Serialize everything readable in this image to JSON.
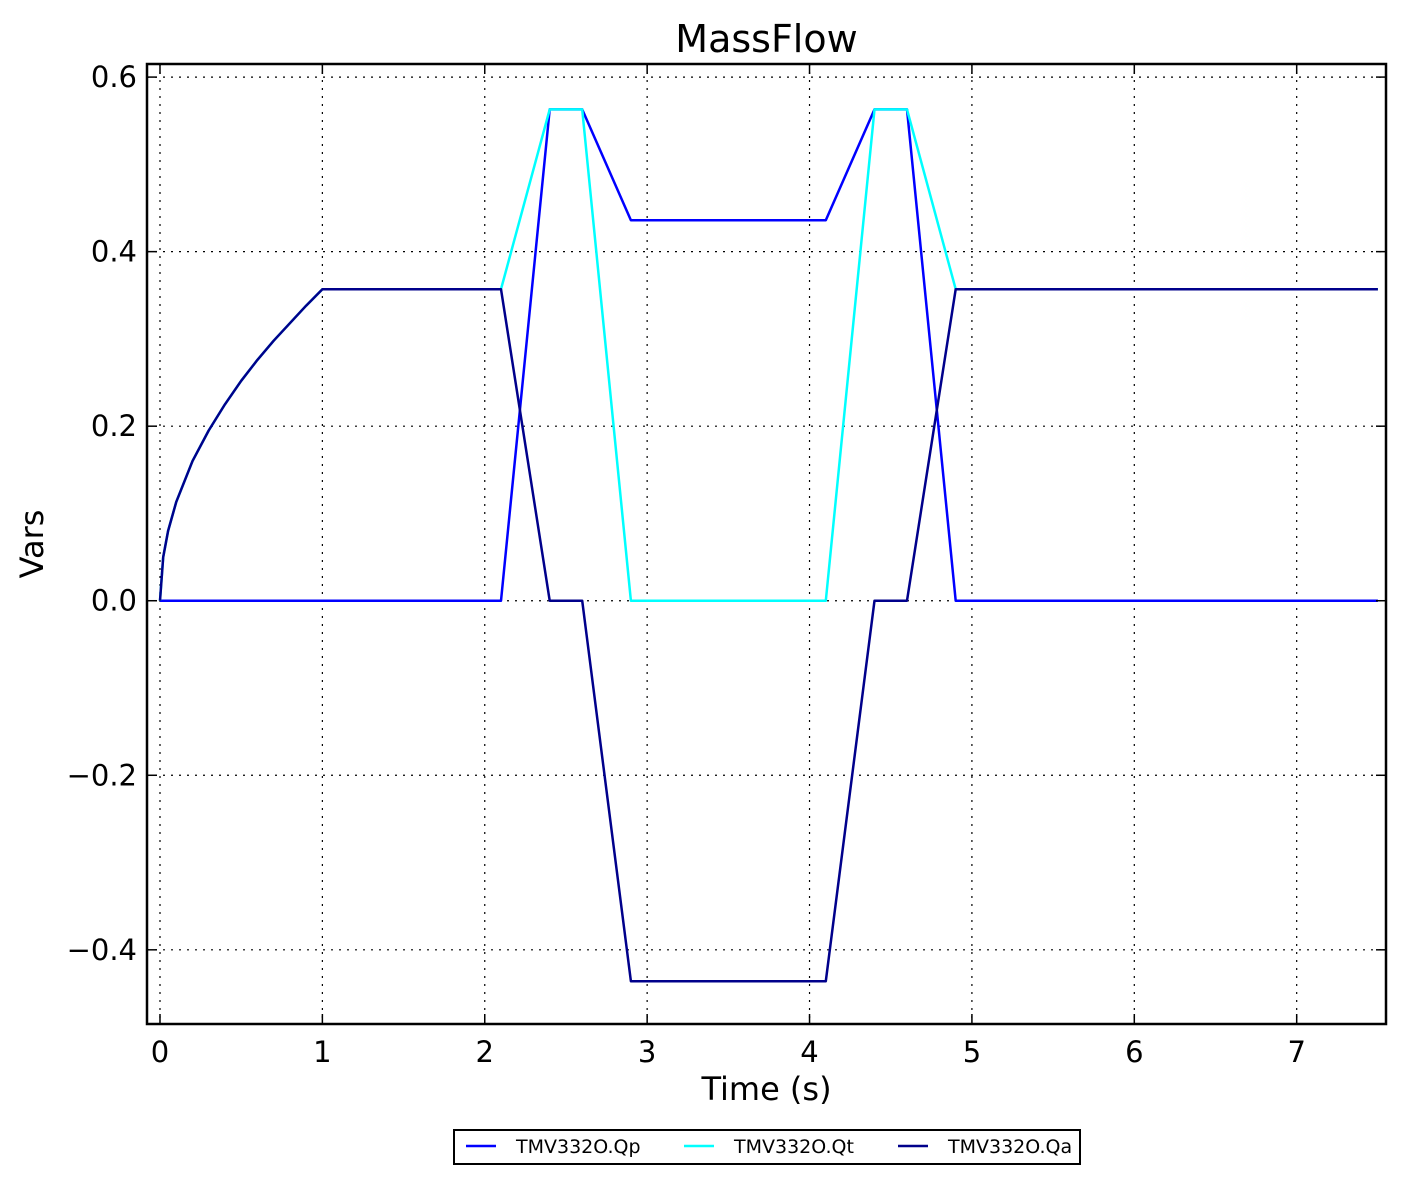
{
  "chart_data": {
    "type": "line",
    "title": "MassFlow",
    "xlabel": "Time (s)",
    "ylabel": "Vars",
    "xlim": [
      -0.08,
      7.55
    ],
    "ylim": [
      -0.485,
      0.615
    ],
    "xticks": [
      0,
      1,
      2,
      3,
      4,
      5,
      6,
      7
    ],
    "xtick_labels": [
      "0",
      "1",
      "2",
      "3",
      "4",
      "5",
      "6",
      "7"
    ],
    "yticks": [
      -0.4,
      -0.2,
      0.0,
      0.2,
      0.4,
      0.6
    ],
    "ytick_labels": [
      "−0.4",
      "−0.2",
      "0.0",
      "0.2",
      "0.4",
      "0.6"
    ],
    "grid": true,
    "legend_position": "bottom-center",
    "series": [
      {
        "name": "TMV332O.Qp",
        "color": "#0000ff",
        "x": [
          0,
          2.1,
          2.4,
          2.6,
          2.9,
          4.1,
          4.4,
          4.6,
          4.9,
          7.5
        ],
        "y": [
          0,
          0,
          0.563,
          0.563,
          0.436,
          0.436,
          0.563,
          0.563,
          0,
          0
        ]
      },
      {
        "name": "TMV332O.Qt",
        "color": "#00ffff",
        "x": [
          0,
          0.02,
          0.05,
          0.1,
          0.2,
          0.3,
          0.4,
          0.5,
          0.6,
          0.7,
          0.8,
          0.9,
          1.0,
          2.1,
          2.4,
          2.6,
          2.9,
          4.1,
          4.4,
          4.6,
          4.9,
          7.5
        ],
        "y": [
          0,
          0.05,
          0.08,
          0.113,
          0.16,
          0.195,
          0.225,
          0.252,
          0.276,
          0.298,
          0.318,
          0.338,
          0.357,
          0.357,
          0.563,
          0.563,
          0,
          0,
          0.563,
          0.563,
          0.357,
          0.357
        ]
      },
      {
        "name": "TMV332O.Qa",
        "color": "#00008b",
        "x": [
          0,
          0.02,
          0.05,
          0.1,
          0.2,
          0.3,
          0.4,
          0.5,
          0.6,
          0.7,
          0.8,
          0.9,
          1.0,
          2.1,
          2.4,
          2.6,
          2.9,
          4.1,
          4.4,
          4.6,
          4.9,
          7.5
        ],
        "y": [
          0,
          0.05,
          0.08,
          0.113,
          0.16,
          0.195,
          0.225,
          0.252,
          0.276,
          0.298,
          0.318,
          0.338,
          0.357,
          0.357,
          0,
          0,
          -0.436,
          -0.436,
          0,
          0,
          0.357,
          0.357
        ]
      }
    ]
  }
}
